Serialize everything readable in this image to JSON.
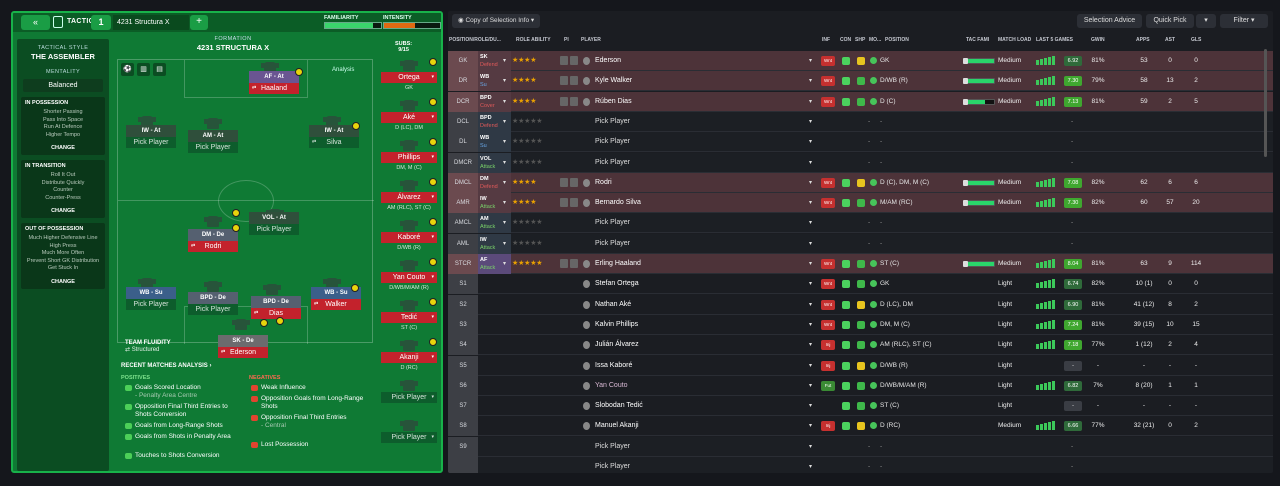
{
  "tactics": {
    "back": "«",
    "label": "TACTICS",
    "slot": "1",
    "name": "4231 Structura X",
    "plus": "+",
    "familiarity_label": "FAMILIARITY",
    "intensity_label": "INTENSITY",
    "familiarity_pct": 0.85,
    "intensity_pct": 0.55
  },
  "style": {
    "heading": "TACTICAL STYLE",
    "name": "THE ASSEMBLER",
    "mentality_label": "MENTALITY",
    "mentality": "Balanced",
    "in_possession": {
      "title": "IN POSSESSION",
      "items": [
        "Shorter Passing",
        "Pass Into Space",
        "Run At Defence",
        "Higher Tempo"
      ],
      "change": "CHANGE"
    },
    "in_transition": {
      "title": "IN TRANSITION",
      "items": [
        "Roll It Out",
        "Distribute Quickly",
        "Counter",
        "Counter-Press"
      ],
      "change": "CHANGE"
    },
    "out_possession": {
      "title": "OUT OF POSSESSION",
      "items": [
        "Much Higher Defensive Line",
        "High Press",
        "Much More Often",
        "Prevent Short GK Distribution",
        "Get Stuck In"
      ],
      "change": "CHANGE"
    }
  },
  "formation": {
    "label": "FORMATION",
    "name": "4231 STRUCTURA X",
    "subs_label": "SUBS:",
    "subs": "9/15",
    "analysis": "Analysis"
  },
  "pitch_cards": [
    {
      "role": "AF - At",
      "name": "Haaland"
    },
    {
      "role": "IW - At",
      "name": "Pick Player"
    },
    {
      "role": "AM - At",
      "name": "Pick Player"
    },
    {
      "role": "IW - At",
      "name": "Silva"
    },
    {
      "role": "DM - De",
      "name": "Rodri"
    },
    {
      "role": "VOL - At",
      "name": "Pick Player"
    },
    {
      "role": "WB - Su",
      "name": "Pick Player"
    },
    {
      "role": "BPD - De",
      "name": "Pick Player"
    },
    {
      "role": "BPD - De",
      "name": "Dias"
    },
    {
      "role": "WB - Su",
      "name": "Walker"
    },
    {
      "role": "SK - De",
      "name": "Ederson"
    }
  ],
  "subs_list": [
    {
      "name": "Ortega",
      "pos": "GK"
    },
    {
      "name": "Aké",
      "pos": "D (LC), DM"
    },
    {
      "name": "Phillips",
      "pos": "DM, M (C)"
    },
    {
      "name": "Álvarez",
      "pos": "AM (RLC), ST (C)"
    },
    {
      "name": "Kaboré",
      "pos": "D/WB (R)"
    },
    {
      "name": "Yan Couto",
      "pos": "D/WB/M/AM (R)"
    },
    {
      "name": "Tedić",
      "pos": "ST (C)"
    },
    {
      "name": "Akanji",
      "pos": "D (RC)"
    },
    {
      "name": "Pick Player",
      "pos": ""
    },
    {
      "name": "Pick Player",
      "pos": ""
    }
  ],
  "fluidity": {
    "label": "TEAM FLUIDITY",
    "value": "Structured"
  },
  "matches": {
    "title": "RECENT MATCHES ANALYSIS ›",
    "positives_label": "POSITIVES",
    "negatives_label": "NEGATIVES",
    "positives": [
      {
        "text": "Goals Scored Location",
        "sub": "- Penalty Area Centre"
      },
      {
        "text": "Opposition Final Third Entries to Shots Conversion",
        "sub": ""
      },
      {
        "text": "Goals from Long-Range Shots",
        "sub": ""
      },
      {
        "text": "Goals from Shots in Penalty Area",
        "sub": ""
      },
      {
        "text": "Touches to Shots Conversion",
        "sub": ""
      }
    ],
    "negatives": [
      {
        "text": "Weak Influence",
        "sub": ""
      },
      {
        "text": "Opposition Goals from Long-Range Shots",
        "sub": ""
      },
      {
        "text": "Opposition Final Third Entries",
        "sub": "- Central"
      },
      {
        "text": "Lost Possession",
        "sub": ""
      }
    ]
  },
  "right": {
    "copy": "Copy of Selection Info",
    "selection_advice": "Selection Advice",
    "quick_pick": "Quick Pick",
    "filter": "Filter",
    "headers": {
      "pos": "POSITION/ROLE/DU...",
      "ability": "ROLE ABILITY",
      "pi": "PI",
      "player": "PLAYER",
      "inf": "INF",
      "con": "CON",
      "shp": "SHP",
      "mo": "MO...",
      "position": "POSITION",
      "tac": "TAC FAMI",
      "load": "MATCH LOAD",
      "last5": "LAST 5 GAMES",
      "gwin": "GWIN",
      "apps": "APPS",
      "ast": "AST",
      "gls": "GLS"
    }
  },
  "rows": [
    {
      "pos": "GK",
      "role": "SK",
      "duty": "Defend",
      "stars": "★★★★",
      "player": "Ederson",
      "inf": "Wnt",
      "position": "GK",
      "load": "Medium",
      "rating": "6.92",
      "gwin": "81%",
      "apps": "53",
      "ast": "0",
      "gls": "0",
      "sel": true
    },
    {
      "pos": "DR",
      "role": "WB",
      "duty": "Su",
      "stars": "★★★★",
      "player": "Kyle Walker",
      "inf": "Wnt",
      "position": "D/WB (R)",
      "load": "Medium",
      "rating": "7.30",
      "gwin": "79%",
      "apps": "58",
      "ast": "13",
      "gls": "2",
      "sel": true
    },
    {
      "pos": "DCR",
      "role": "BPD",
      "duty": "Cover",
      "stars": "★★★★",
      "player": "Rúben Dias",
      "inf": "Wnt",
      "position": "D (C)",
      "load": "Medium",
      "rating": "7.13",
      "gwin": "81%",
      "apps": "59",
      "ast": "2",
      "gls": "5",
      "sel": true
    },
    {
      "pos": "DCL",
      "role": "BPD",
      "duty": "Defend",
      "stars": "★★★★★",
      "player": "Pick Player",
      "empty": true
    },
    {
      "pos": "DL",
      "role": "WB",
      "duty": "Su",
      "stars": "★★★★★",
      "player": "Pick Player",
      "empty": true
    },
    {
      "pos": "DMCR",
      "role": "VOL",
      "duty": "Attack",
      "stars": "★★★★★",
      "player": "Pick Player",
      "empty": true
    },
    {
      "pos": "DMCL",
      "role": "DM",
      "duty": "Defend",
      "stars": "★★★★",
      "player": "Rodri",
      "inf": "Wnt",
      "position": "D (C), DM, M (C)",
      "load": "Medium",
      "rating": "7.08",
      "gwin": "82%",
      "apps": "62",
      "ast": "6",
      "gls": "6",
      "sel": true
    },
    {
      "pos": "AMR",
      "role": "IW",
      "duty": "Attack",
      "stars": "★★★★",
      "player": "Bernardo Silva",
      "inf": "Wnt",
      "position": "M/AM (RC)",
      "load": "Medium",
      "rating": "7.30",
      "gwin": "82%",
      "apps": "60",
      "ast": "57",
      "gls": "20",
      "sel": true
    },
    {
      "pos": "AMCL",
      "role": "AM",
      "duty": "Attack",
      "stars": "★★★★★",
      "player": "Pick Player",
      "empty": true
    },
    {
      "pos": "AML",
      "role": "IW",
      "duty": "Attack",
      "stars": "★★★★★",
      "player": "Pick Player",
      "empty": true
    },
    {
      "pos": "STCR",
      "role": "AF",
      "duty": "Attack",
      "stars": "★★★★★",
      "player": "Erling Haaland",
      "inf": "Wnt",
      "position": "ST (C)",
      "load": "Medium",
      "rating": "8.04",
      "gwin": "81%",
      "apps": "63",
      "ast": "9",
      "gls": "114",
      "sel": true
    },
    {
      "pos": "S1",
      "player": "Stefan Ortega",
      "inf": "Wnt",
      "position": "GK",
      "load": "Light",
      "rating": "6.74",
      "gwin": "82%",
      "apps": "10 (1)",
      "ast": "0",
      "gls": "0",
      "sub": true
    },
    {
      "pos": "S2",
      "player": "Nathan Aké",
      "inf": "Wnt",
      "position": "D (LC), DM",
      "load": "Light",
      "rating": "6.90",
      "gwin": "81%",
      "apps": "41 (12)",
      "ast": "8",
      "gls": "2",
      "sub": true
    },
    {
      "pos": "S3",
      "player": "Kalvin Phillips",
      "inf": "Wnt",
      "position": "DM, M (C)",
      "load": "Light",
      "rating": "7.24",
      "gwin": "81%",
      "apps": "39 (15)",
      "ast": "10",
      "gls": "15",
      "sub": true
    },
    {
      "pos": "S4",
      "player": "Julián Álvarez",
      "inf": "Inj",
      "position": "AM (RLC), ST (C)",
      "load": "Light",
      "rating": "7.18",
      "gwin": "77%",
      "apps": "1 (12)",
      "ast": "2",
      "gls": "4",
      "sub": true
    },
    {
      "pos": "S5",
      "player": "Issa Kaboré",
      "inf": "Inj",
      "position": "D/WB (R)",
      "load": "Light",
      "rating": "-",
      "gwin": "-",
      "apps": "-",
      "ast": "-",
      "gls": "-",
      "sub": true
    },
    {
      "pos": "S6",
      "player": "Yan Couto",
      "inf": "Fut",
      "position": "D/WB/M/AM (R)",
      "load": "Light",
      "rating": "6.82",
      "gwin": "7%",
      "apps": "8 (20)",
      "ast": "1",
      "gls": "1",
      "sub": true,
      "muted": true
    },
    {
      "pos": "S7",
      "player": "Slobodan Tedić",
      "inf": "",
      "position": "ST (C)",
      "load": "Light",
      "rating": "-",
      "gwin": "-",
      "apps": "-",
      "ast": "-",
      "gls": "-",
      "sub": true
    },
    {
      "pos": "S8",
      "player": "Manuel Akanji",
      "inf": "Inj",
      "position": "D (RC)",
      "load": "Medium",
      "rating": "6.66",
      "gwin": "77%",
      "apps": "32 (21)",
      "ast": "0",
      "gls": "2",
      "sub": true
    },
    {
      "pos": "S9",
      "player": "Pick Player",
      "empty": true
    },
    {
      "pos": "",
      "player": "Pick Player",
      "empty": true
    }
  ],
  "colors": {
    "accent": "#18b24a",
    "selected_row": "#4d3339",
    "rating_green": "#3fa72f",
    "star": "#e9a000"
  }
}
